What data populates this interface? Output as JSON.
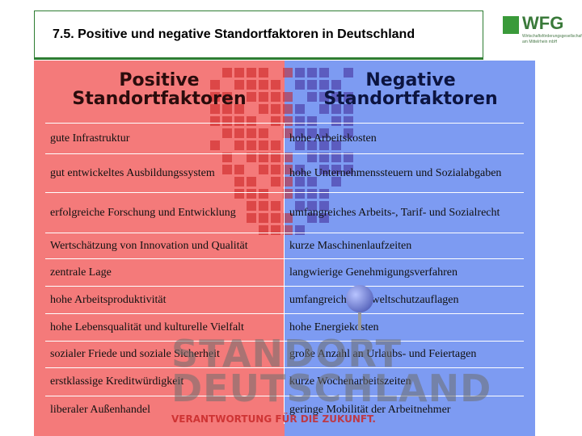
{
  "header": {
    "title": "7.5. Positive und negative Standortfaktoren in Deutschland"
  },
  "logo": {
    "name": "WFG",
    "subtitle": "Wirtschaftsförderungsgesellschaft am Mittelrhein mbH"
  },
  "columns": {
    "positive": "Positive Standortfaktoren",
    "negative": "Negative Standortfaktoren"
  },
  "table": {
    "rows": [
      [
        "gute Infrastruktur",
        "hohe Arbeitskosten"
      ],
      [
        "gut entwickeltes Ausbildungssystem",
        "hohe Unternehmenssteuern und Sozialabgaben"
      ],
      [
        "erfolgreiche Forschung und Entwicklung",
        "umfangreiches Arbeits-, Tarif- und Sozialrecht"
      ],
      [
        "Wertschätzung von Innovation und Qualität",
        "kurze Maschinenlaufzeiten"
      ],
      [
        "zentrale Lage",
        "langwierige Genehmigungsverfahren"
      ],
      [
        "hohe Arbeitsproduktivität",
        "umfangreiche Umweltschutzauflagen"
      ],
      [
        "hohe Lebensqualität und kulturelle Vielfalt",
        "hohe Energiekosten"
      ],
      [
        "sozialer Friede und soziale Sicherheit",
        "große Anzahl an Urlaubs- und Feiertagen"
      ],
      [
        "erstklassige Kreditwürdigkeit",
        "kurze Wochenarbeitszeiten"
      ],
      [
        "liberaler Außenhandel",
        "geringe Mobilität der Arbeitnehmer"
      ]
    ]
  },
  "watermark": {
    "line1": "STANDORT",
    "line2": "DEUTSCHLAND",
    "slogan": "VERANTWORTUNG FÜR DIE ZUKUNFT."
  }
}
